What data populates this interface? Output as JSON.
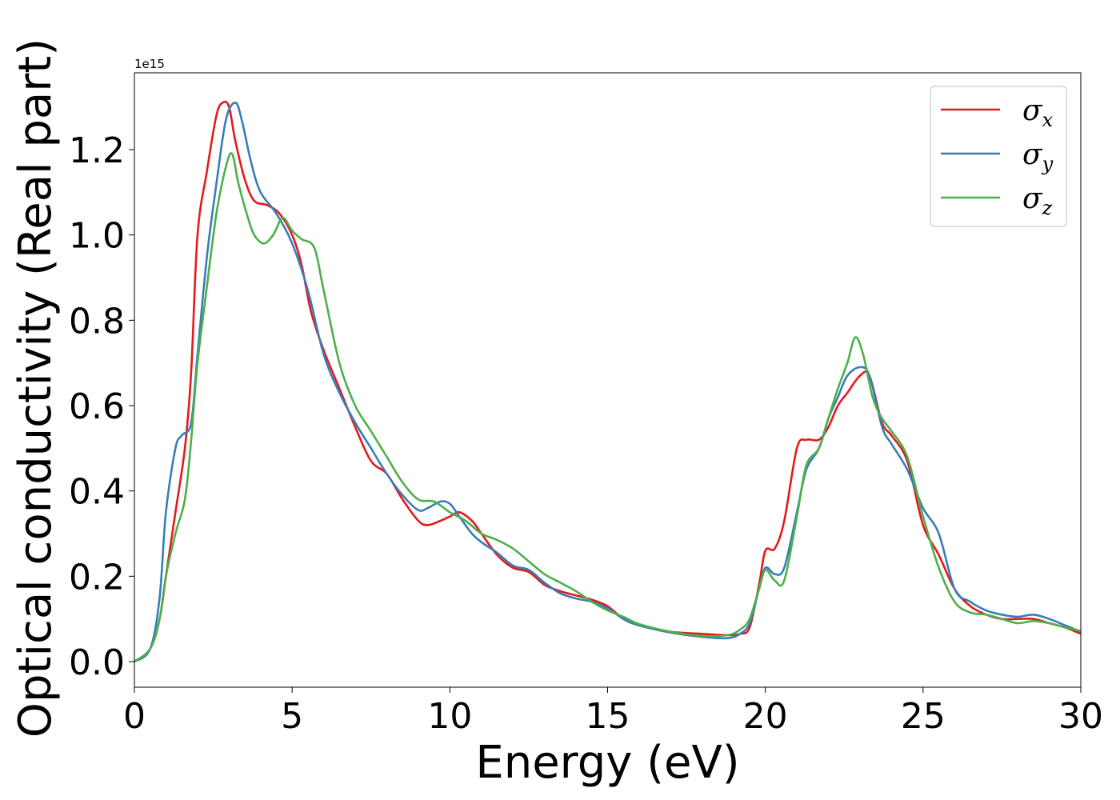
{
  "chart_data": {
    "type": "line",
    "title": "",
    "xlabel": "Energy (eV)",
    "ylabel": "Optical conductivity (Real part)",
    "y_offset_text": "1e15",
    "xlim": [
      0,
      30
    ],
    "ylim": [
      -0.06,
      1.38
    ],
    "xticks": [
      0,
      5,
      10,
      15,
      20,
      25,
      30
    ],
    "xtick_labels": [
      "0",
      "5",
      "10",
      "15",
      "20",
      "25",
      "30"
    ],
    "yticks": [
      0.0,
      0.2,
      0.4,
      0.6,
      0.8,
      1.0,
      1.2
    ],
    "ytick_labels": [
      "0.0",
      "0.2",
      "0.4",
      "0.6",
      "0.8",
      "1.0",
      "1.2"
    ],
    "grid": false,
    "legend_position": "top-right",
    "series": [
      {
        "name": "σx",
        "symbol": "σ",
        "subscript": "x",
        "color": "#e41a1c",
        "x": [
          0,
          0.5,
          0.8,
          1.0,
          1.3,
          1.6,
          1.8,
          2.0,
          2.3,
          2.6,
          2.8,
          3.0,
          3.2,
          3.5,
          3.8,
          4.2,
          4.6,
          5.0,
          5.3,
          5.6,
          6.0,
          6.5,
          7.0,
          7.5,
          8.0,
          8.5,
          9.0,
          9.3,
          9.7,
          10.0,
          10.3,
          10.7,
          11.0,
          11.5,
          12.0,
          12.5,
          13.0,
          13.5,
          14.0,
          14.5,
          15.0,
          15.5,
          16.0,
          17.0,
          18.0,
          18.8,
          19.2,
          19.5,
          19.8,
          20.0,
          20.3,
          20.6,
          21.0,
          21.3,
          21.7,
          22.0,
          22.3,
          22.6,
          23.0,
          23.3,
          23.7,
          24.0,
          24.5,
          25.0,
          25.5,
          26.0,
          26.5,
          27.0,
          27.5,
          28.0,
          28.5,
          29.0,
          29.5,
          30.0
        ],
        "y": [
          0.0,
          0.03,
          0.1,
          0.2,
          0.35,
          0.5,
          0.68,
          1.0,
          1.15,
          1.28,
          1.31,
          1.3,
          1.22,
          1.13,
          1.08,
          1.07,
          1.05,
          1.0,
          0.93,
          0.82,
          0.73,
          0.64,
          0.55,
          0.47,
          0.44,
          0.38,
          0.33,
          0.32,
          0.33,
          0.34,
          0.35,
          0.33,
          0.3,
          0.25,
          0.22,
          0.21,
          0.18,
          0.165,
          0.155,
          0.145,
          0.13,
          0.1,
          0.085,
          0.07,
          0.065,
          0.062,
          0.065,
          0.08,
          0.18,
          0.26,
          0.265,
          0.33,
          0.5,
          0.52,
          0.52,
          0.55,
          0.6,
          0.63,
          0.67,
          0.67,
          0.56,
          0.53,
          0.47,
          0.32,
          0.25,
          0.17,
          0.13,
          0.11,
          0.1,
          0.1,
          0.1,
          0.09,
          0.08,
          0.065
        ]
      },
      {
        "name": "σy",
        "symbol": "σ",
        "subscript": "y",
        "color": "#377eb8",
        "x": [
          0,
          0.5,
          0.8,
          1.0,
          1.3,
          1.5,
          1.8,
          2.0,
          2.3,
          2.6,
          2.9,
          3.2,
          3.4,
          3.7,
          4.0,
          4.5,
          5.0,
          5.5,
          6.0,
          6.5,
          7.0,
          7.5,
          8.0,
          8.5,
          9.0,
          9.3,
          9.7,
          10.0,
          10.3,
          10.7,
          11.0,
          11.5,
          12.0,
          12.5,
          13.0,
          13.5,
          14.0,
          14.5,
          15.0,
          15.5,
          16.0,
          17.0,
          18.0,
          18.8,
          19.2,
          19.5,
          19.8,
          20.0,
          20.3,
          20.6,
          21.0,
          21.3,
          21.7,
          22.0,
          22.3,
          22.6,
          23.0,
          23.3,
          23.7,
          24.0,
          24.5,
          25.0,
          25.5,
          26.0,
          26.5,
          27.0,
          27.5,
          28.0,
          28.5,
          29.0,
          29.5,
          30.0
        ],
        "y": [
          0.0,
          0.03,
          0.15,
          0.35,
          0.5,
          0.53,
          0.56,
          0.72,
          0.95,
          1.12,
          1.27,
          1.31,
          1.27,
          1.17,
          1.1,
          1.05,
          0.98,
          0.87,
          0.72,
          0.63,
          0.56,
          0.5,
          0.44,
          0.39,
          0.355,
          0.36,
          0.375,
          0.37,
          0.34,
          0.3,
          0.28,
          0.255,
          0.225,
          0.215,
          0.185,
          0.16,
          0.148,
          0.14,
          0.125,
          0.1,
          0.085,
          0.068,
          0.058,
          0.055,
          0.065,
          0.09,
          0.17,
          0.22,
          0.205,
          0.22,
          0.35,
          0.45,
          0.5,
          0.57,
          0.62,
          0.67,
          0.69,
          0.67,
          0.55,
          0.51,
          0.45,
          0.36,
          0.3,
          0.17,
          0.14,
          0.12,
          0.11,
          0.105,
          0.11,
          0.1,
          0.085,
          0.07
        ]
      },
      {
        "name": "σz",
        "symbol": "σ",
        "subscript": "z",
        "color": "#4daf4a",
        "x": [
          0,
          0.5,
          0.8,
          1.0,
          1.3,
          1.6,
          1.8,
          2.0,
          2.3,
          2.6,
          2.9,
          3.1,
          3.3,
          3.6,
          3.8,
          4.1,
          4.4,
          4.7,
          5.0,
          5.3,
          5.7,
          6.0,
          6.5,
          7.0,
          7.5,
          8.0,
          8.5,
          9.0,
          9.5,
          10.0,
          10.5,
          11.0,
          11.5,
          12.0,
          12.5,
          13.0,
          13.5,
          14.0,
          14.5,
          15.0,
          15.5,
          16.0,
          17.0,
          18.0,
          18.8,
          19.2,
          19.5,
          19.8,
          20.0,
          20.3,
          20.6,
          21.0,
          21.3,
          21.7,
          22.0,
          22.3,
          22.6,
          22.85,
          23.1,
          23.4,
          23.7,
          24.0,
          24.5,
          25.0,
          25.5,
          26.0,
          26.5,
          27.0,
          27.5,
          28.0,
          28.5,
          29.0,
          29.5,
          30.0
        ],
        "y": [
          0.0,
          0.03,
          0.1,
          0.2,
          0.3,
          0.38,
          0.52,
          0.7,
          0.88,
          1.05,
          1.16,
          1.19,
          1.12,
          1.04,
          1.0,
          0.98,
          1.0,
          1.04,
          1.01,
          0.99,
          0.97,
          0.87,
          0.7,
          0.6,
          0.54,
          0.48,
          0.42,
          0.38,
          0.375,
          0.35,
          0.33,
          0.3,
          0.285,
          0.265,
          0.235,
          0.205,
          0.185,
          0.165,
          0.14,
          0.12,
          0.105,
          0.088,
          0.07,
          0.06,
          0.062,
          0.075,
          0.1,
          0.17,
          0.215,
          0.19,
          0.19,
          0.34,
          0.46,
          0.5,
          0.57,
          0.64,
          0.7,
          0.76,
          0.72,
          0.62,
          0.57,
          0.54,
          0.48,
          0.34,
          0.22,
          0.14,
          0.115,
          0.11,
          0.1,
          0.09,
          0.095,
          0.09,
          0.08,
          0.072
        ]
      }
    ]
  }
}
